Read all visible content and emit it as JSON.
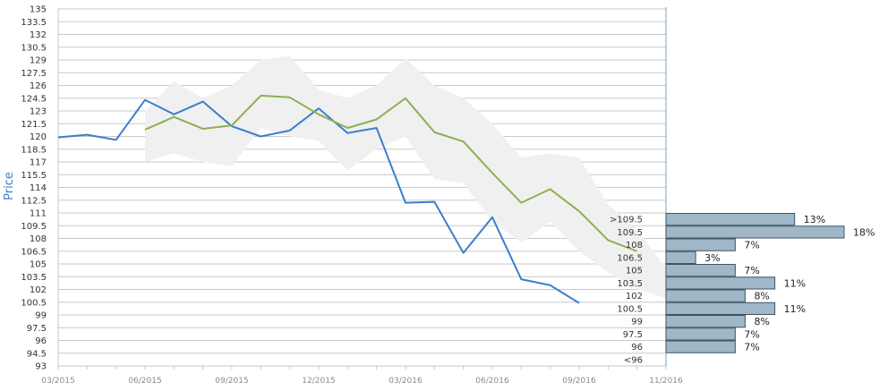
{
  "chart_data": {
    "type": "line",
    "ylabel": "Price",
    "ylim": [
      93,
      135
    ],
    "y_ticks": [
      "93",
      "94.5",
      "96",
      "97.5",
      "99",
      "100.5",
      "102",
      "103.5",
      "105",
      "106.5",
      "108",
      "109.5",
      "111",
      "112.5",
      "114",
      "115.5",
      "117",
      "118.5",
      "120",
      "121.5",
      "123",
      "124.5",
      "126",
      "127.5",
      "129",
      "130.5",
      "132",
      "133.5",
      "135"
    ],
    "x_ticks": [
      {
        "label": "03/2015",
        "month": 0
      },
      {
        "label": "06/2015",
        "month": 3
      },
      {
        "label": "09/2015",
        "month": 6
      },
      {
        "label": "12/2015",
        "month": 9
      },
      {
        "label": "03/2016",
        "month": 12
      },
      {
        "label": "06/2016",
        "month": 15
      },
      {
        "label": "09/2016",
        "month": 18
      },
      {
        "label": "11/2016",
        "month": 21
      }
    ],
    "series": [
      {
        "color": "#3a7fcc",
        "x": [
          0,
          1,
          2,
          3,
          4,
          5,
          6,
          7,
          8,
          9,
          10,
          11,
          12,
          13,
          14,
          15,
          16,
          17,
          18
        ],
        "values": [
          119.9,
          120.2,
          119.6,
          124.3,
          122.6,
          124.1,
          121.2,
          120.0,
          120.7,
          123.3,
          120.4,
          121.0,
          112.2,
          112.3,
          106.3,
          110.5,
          103.2,
          102.5,
          100.4
        ]
      },
      {
        "color": "#8db04f",
        "x": [
          3,
          4,
          5,
          6,
          7,
          8,
          9,
          10,
          11,
          12,
          13,
          14,
          15,
          16,
          17,
          18,
          19,
          20
        ],
        "values": [
          120.8,
          122.3,
          120.9,
          121.3,
          124.8,
          124.6,
          122.6,
          121.0,
          122.0,
          124.5,
          120.5,
          119.4,
          115.7,
          112.2,
          113.8,
          111.2,
          107.8,
          106.5
        ]
      }
    ],
    "band": {
      "color": "#f0f0f0",
      "x": [
        3,
        4,
        5,
        6,
        7,
        8,
        9,
        10,
        11,
        12,
        13,
        14,
        15,
        16,
        17,
        18,
        19,
        20,
        21
      ],
      "upper": [
        123.0,
        126.5,
        124.5,
        126.0,
        129.0,
        129.5,
        125.5,
        124.5,
        126.0,
        129.2,
        126.0,
        124.5,
        121.5,
        117.5,
        118.0,
        117.5,
        112.0,
        109.0,
        104.5
      ],
      "lower": [
        117.0,
        118.0,
        117.0,
        116.5,
        121.0,
        120.0,
        119.5,
        116.0,
        118.5,
        120.0,
        115.0,
        114.5,
        110.0,
        107.5,
        110.0,
        106.5,
        104.0,
        102.0,
        101.0
      ]
    },
    "distribution": {
      "color": "#9fb7c6",
      "items": [
        {
          "label": ">109.5",
          "value": 13,
          "text": "13%"
        },
        {
          "label": "109.5",
          "value": 18,
          "text": "18%"
        },
        {
          "label": "108",
          "value": 7,
          "text": "7%"
        },
        {
          "label": "106.5",
          "value": 3,
          "text": "3%"
        },
        {
          "label": "105",
          "value": 7,
          "text": "7%"
        },
        {
          "label": "103.5",
          "value": 11,
          "text": "11%"
        },
        {
          "label": "102",
          "value": 8,
          "text": "8%"
        },
        {
          "label": "100.5",
          "value": 11,
          "text": "11%"
        },
        {
          "label": "99",
          "value": 8,
          "text": "8%"
        },
        {
          "label": "97.5",
          "value": 7,
          "text": "7%"
        },
        {
          "label": "96",
          "value": 7,
          "text": "7%"
        },
        {
          "label": "<96",
          "value": 0,
          "text": ""
        }
      ]
    }
  }
}
